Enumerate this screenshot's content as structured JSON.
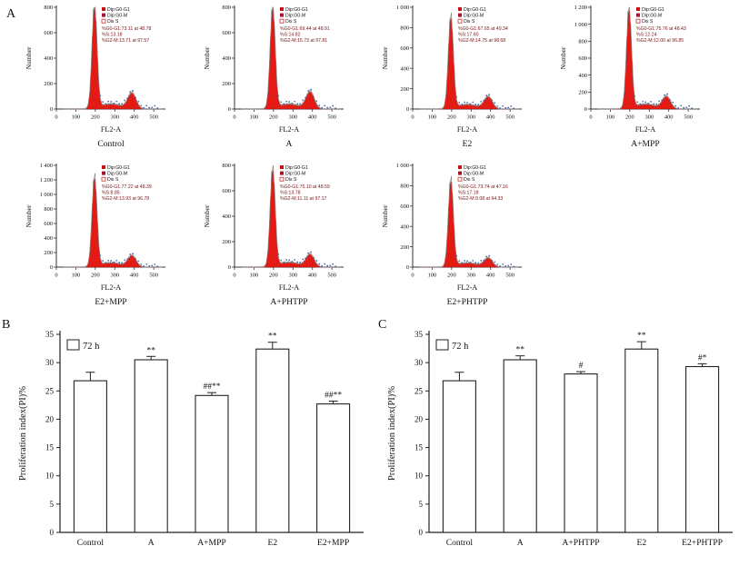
{
  "figure": {
    "panel_labels": {
      "a": "A",
      "b": "B",
      "c": "C"
    }
  },
  "chart_data": [
    {
      "type": "area",
      "panel": "A",
      "description": "Flow cytometry DNA content histograms",
      "ylabel": "Number",
      "xlabel": "FL2-A",
      "x_ticks": [
        0,
        100,
        200,
        300,
        400,
        500
      ],
      "xlim": [
        0,
        560
      ],
      "legend": [
        "Dip:G0-G1",
        "Dip:G0-M",
        "Dis S"
      ],
      "colors": {
        "fill": "#e31b14",
        "outline": "#8a8a8a",
        "dots": "#3f62a8",
        "stats_text": "#7a1212"
      },
      "g1_peak_x": 196,
      "g2_peak_x": 388,
      "histograms": [
        {
          "title": "Control",
          "ymax": 800,
          "ystep": 200,
          "peak": 790,
          "g2": 120,
          "stats": [
            "%G0-G1:73.11 at 48.78",
            "%S:13.18",
            "%G2-M:13.71 at 97.57"
          ]
        },
        {
          "title": "A",
          "ymax": 800,
          "ystep": 200,
          "peak": 780,
          "g2": 130,
          "stats": [
            "%G0-G1:69.44 at 48.91",
            "%S:14.82",
            "%G2-M:15.73 at 97.81"
          ]
        },
        {
          "title": "E2",
          "ymax": 1000,
          "ystep": 200,
          "peak": 880,
          "g2": 115,
          "stats": [
            "%G0-G1:67.65 at 49.34",
            "%S:17.60",
            "%G2-M:14.75 at 98.68"
          ]
        },
        {
          "title": "A+MPP",
          "ymax": 1200,
          "ystep": 200,
          "peak": 1150,
          "g2": 140,
          "stats": [
            "%G0-G1:75.76 at 48.43",
            "%S:12.24",
            "%G2-M:12.00 at 96.85"
          ]
        },
        {
          "title": "E2+MPP",
          "ymax": 1400,
          "ystep": 200,
          "peak": 1200,
          "g2": 150,
          "stats": [
            "%G0-G1:77.22 at 48.39",
            "%S:8.85",
            "%G2-M:13.93 at 96.78"
          ]
        },
        {
          "title": "A+PHTPP",
          "ymax": 800,
          "ystep": 200,
          "peak": 750,
          "g2": 95,
          "stats": [
            "%G0-G1:75.10 at 48.59",
            "%S:13.78",
            "%G2-M:11.11 at 97.17"
          ]
        },
        {
          "title": "E2+PHTPP",
          "ymax": 1000,
          "ystep": 200,
          "peak": 830,
          "g2": 85,
          "stats": [
            "%G0-G1:73.74 at 47.16",
            "%S:17.18",
            "%G2-M:9.08 at 94.33"
          ]
        }
      ]
    },
    {
      "type": "bar",
      "panel": "B",
      "legend": "72 h",
      "ylabel": "Proliferation index(PI)%",
      "ylim": [
        0,
        35
      ],
      "ystep": 5,
      "categories": [
        "Control",
        "A",
        "A+MPP",
        "E2",
        "E2+MPP"
      ],
      "values": [
        26.8,
        30.5,
        24.2,
        32.4,
        22.7
      ],
      "errors": [
        1.5,
        0.6,
        0.5,
        1.2,
        0.5
      ],
      "annotations": [
        "",
        "**",
        "##**",
        "**",
        "##**"
      ]
    },
    {
      "type": "bar",
      "panel": "C",
      "legend": "72 h",
      "ylabel": "Proliferation index(PI)%",
      "ylim": [
        0,
        35
      ],
      "ystep": 5,
      "categories": [
        "Control",
        "A",
        "A+PHTPP",
        "E2",
        "E2+PHTPP"
      ],
      "values": [
        26.8,
        30.5,
        28.0,
        32.4,
        29.3
      ],
      "errors": [
        1.5,
        0.7,
        0.4,
        1.3,
        0.5
      ],
      "annotations": [
        "",
        "**",
        "#",
        "**",
        "#*"
      ]
    }
  ]
}
